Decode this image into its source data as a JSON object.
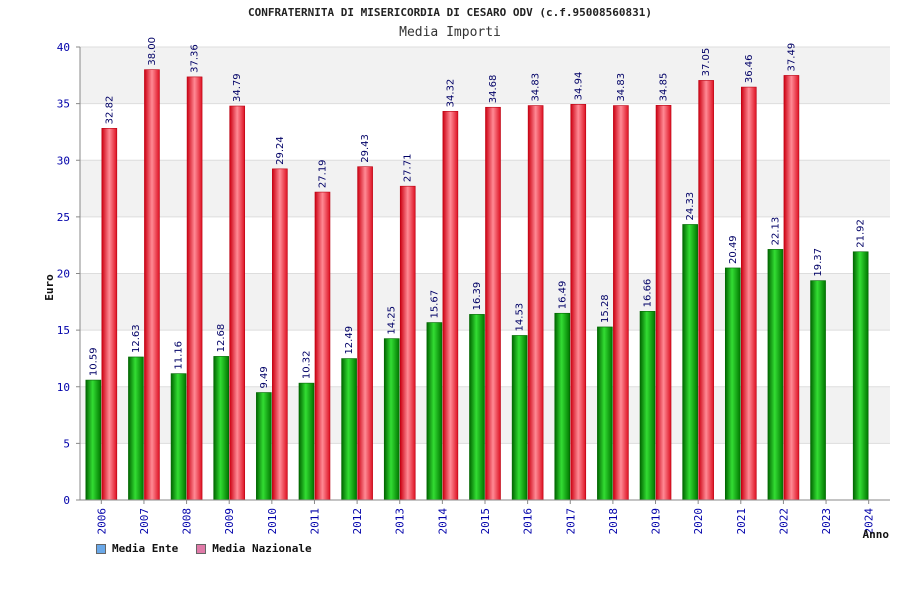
{
  "title": "CONFRATERNITA DI MISERICORDIA DI CESARO ODV (c.f.95008560831)",
  "subtitle": "Media Importi",
  "colors": {
    "ente": "#00aa00",
    "nazionale": "#ee2233",
    "legend_ente": "#6aa8e8",
    "legend_nazionale": "#e07aa8",
    "band": "#f2f2f2",
    "axis_text": "#0000aa"
  },
  "legend": [
    {
      "label": "Media Ente"
    },
    {
      "label": "Media Nazionale"
    }
  ],
  "chart_data": {
    "type": "bar",
    "title": "Media Importi",
    "xlabel": "Anno",
    "ylabel": "Euro",
    "ylim": [
      0,
      40
    ],
    "yticks": [
      0,
      5,
      10,
      15,
      20,
      25,
      30,
      35,
      40
    ],
    "grid": true,
    "legend_position": "bottom-left",
    "categories": [
      "2006",
      "2007",
      "2008",
      "2009",
      "2010",
      "2011",
      "2012",
      "2013",
      "2014",
      "2015",
      "2016",
      "2017",
      "2018",
      "2019",
      "2020",
      "2021",
      "2022",
      "2023",
      "2024"
    ],
    "series": [
      {
        "name": "Media Ente",
        "values": [
          10.59,
          12.63,
          11.16,
          12.68,
          9.49,
          10.32,
          12.49,
          14.25,
          15.67,
          16.39,
          14.53,
          16.49,
          15.28,
          16.66,
          24.33,
          20.49,
          22.13,
          19.37,
          21.92
        ]
      },
      {
        "name": "Media Nazionale",
        "values": [
          32.82,
          38.0,
          37.36,
          34.79,
          29.24,
          27.19,
          29.43,
          27.71,
          34.32,
          34.68,
          34.83,
          34.94,
          34.83,
          34.85,
          37.05,
          36.46,
          37.49,
          null,
          null
        ]
      }
    ]
  }
}
